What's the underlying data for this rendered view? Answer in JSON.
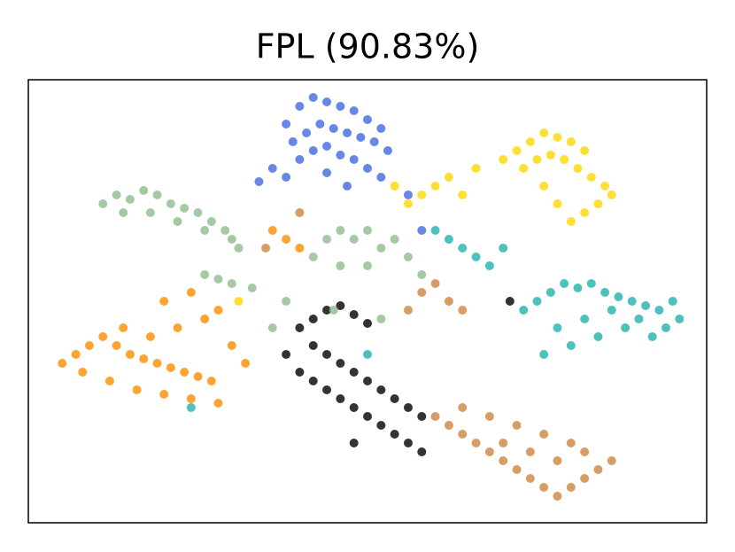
{
  "chart_data": {
    "type": "scatter",
    "title": "FPL (90.83%)",
    "xlim": [
      0,
      100
    ],
    "ylim": [
      0,
      100
    ],
    "series": [
      {
        "color": "#ff8c00",
        "x": [
          5,
          7,
          9,
          11,
          13,
          15,
          17,
          19,
          21,
          23,
          25,
          27,
          8,
          12,
          16,
          20,
          24,
          28,
          18,
          22,
          26,
          20,
          24,
          28,
          30,
          14,
          38,
          36,
          40,
          32
        ],
        "y": [
          36,
          38,
          40,
          42,
          40,
          38,
          37,
          36,
          35,
          34,
          33,
          32,
          34,
          32,
          30,
          29,
          28,
          27,
          42,
          44,
          46,
          50,
          52,
          48,
          40,
          44,
          64,
          66,
          62,
          36
        ]
      },
      {
        "color": "#cd853f",
        "x": [
          60,
          62,
          64,
          66,
          68,
          70,
          72,
          74,
          76,
          78,
          80,
          82,
          84,
          86,
          64,
          68,
          72,
          76,
          80,
          74,
          70,
          78,
          82,
          58,
          60,
          62,
          64,
          56,
          40,
          35
        ],
        "y": [
          24,
          22,
          20,
          18,
          16,
          14,
          12,
          10,
          8,
          6,
          8,
          10,
          12,
          14,
          26,
          24,
          22,
          20,
          18,
          16,
          18,
          14,
          16,
          52,
          54,
          50,
          48,
          48,
          70,
          62
        ]
      },
      {
        "color": "#000000",
        "x": [
          40,
          42,
          44,
          46,
          48,
          50,
          42,
          44,
          46,
          48,
          50,
          52,
          54,
          56,
          44,
          46,
          48,
          50,
          52,
          54,
          56,
          58,
          40,
          42,
          38,
          48,
          71,
          58
        ],
        "y": [
          44,
          46,
          48,
          49,
          47,
          45,
          40,
          38,
          36,
          34,
          32,
          30,
          28,
          26,
          30,
          28,
          26,
          24,
          22,
          20,
          18,
          24,
          34,
          32,
          38,
          18,
          50,
          16
        ]
      },
      {
        "color": "#20b2aa",
        "x": [
          73,
          75,
          77,
          79,
          81,
          83,
          85,
          87,
          89,
          91,
          93,
          95,
          96,
          94,
          92,
          88,
          84,
          80,
          76,
          78,
          82,
          86,
          90,
          62,
          64,
          66,
          68,
          60,
          70,
          24,
          50
        ],
        "y": [
          48,
          50,
          52,
          54,
          53,
          54,
          52,
          51,
          50,
          49,
          48,
          50,
          46,
          44,
          42,
          44,
          42,
          40,
          38,
          44,
          46,
          48,
          46,
          64,
          62,
          60,
          58,
          66,
          62,
          26,
          38
        ]
      },
      {
        "color": "#ffd700",
        "x": [
          70,
          72,
          74,
          76,
          78,
          80,
          82,
          73,
          75,
          77,
          79,
          81,
          83,
          85,
          86,
          84,
          82,
          80,
          78,
          76,
          60,
          62,
          58,
          64,
          56,
          66,
          54,
          31
        ],
        "y": [
          82,
          84,
          86,
          88,
          87,
          86,
          84,
          80,
          82,
          83,
          82,
          80,
          78,
          76,
          74,
          72,
          70,
          68,
          72,
          76,
          76,
          78,
          74,
          74,
          72,
          80,
          76,
          50
        ]
      },
      {
        "color": "#4169e1",
        "x": [
          38,
          40,
          42,
          44,
          46,
          48,
          50,
          52,
          39,
          41,
          43,
          45,
          47,
          49,
          51,
          53,
          40,
          42,
          44,
          46,
          48,
          50,
          36,
          38,
          44,
          56,
          34,
          47,
          52,
          58
        ],
        "y": [
          90,
          94,
          96,
          95,
          94,
          93,
          91,
          89,
          86,
          88,
          90,
          89,
          88,
          87,
          86,
          84,
          82,
          84,
          85,
          83,
          82,
          80,
          80,
          78,
          79,
          74,
          77,
          76,
          78,
          66
        ]
      },
      {
        "color": "#8fbc8f",
        "x": [
          11,
          13,
          15,
          17,
          19,
          21,
          23,
          25,
          27,
          29,
          14,
          18,
          22,
          26,
          30,
          31,
          26,
          28,
          30,
          33,
          44,
          46,
          48,
          50,
          52,
          54,
          56,
          46,
          42,
          50,
          58,
          38,
          45,
          52,
          36
        ],
        "y": [
          72,
          74,
          73,
          75,
          74,
          72,
          71,
          70,
          68,
          66,
          70,
          70,
          68,
          66,
          64,
          62,
          56,
          55,
          54,
          53,
          64,
          66,
          64,
          66,
          62,
          64,
          60,
          58,
          60,
          58,
          56,
          50,
          48,
          46,
          44
        ]
      }
    ]
  }
}
